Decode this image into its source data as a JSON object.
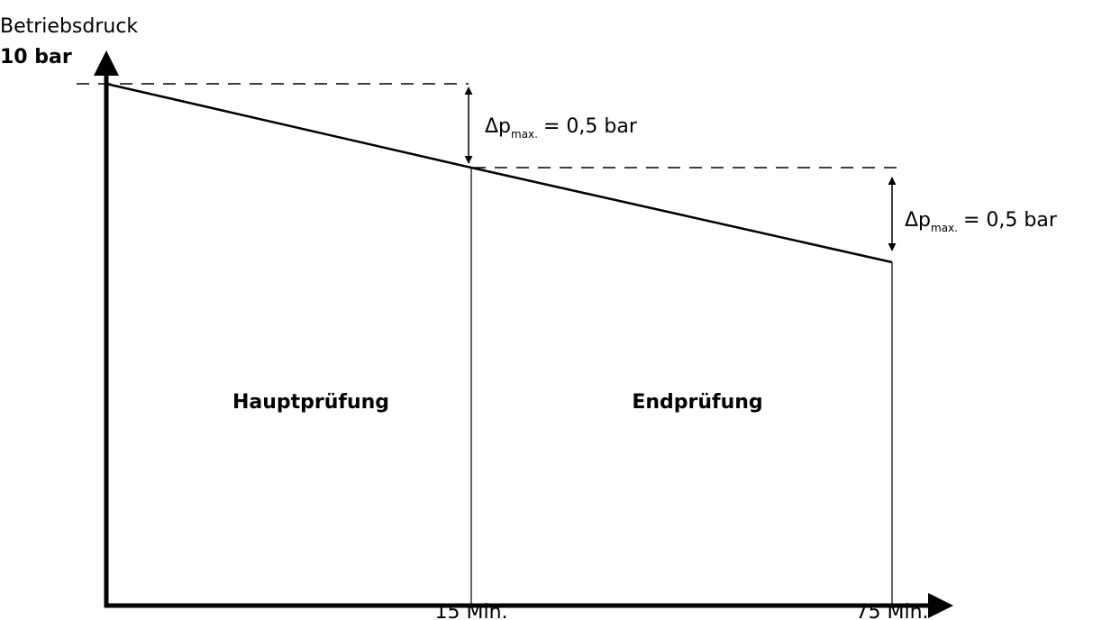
{
  "axis": {
    "y_label": "Betriebsdruck",
    "y_top": "10 bar",
    "x_marks": [
      "15 Min.",
      "75 Min."
    ]
  },
  "annotations": [
    {
      "symbol": "Δp",
      "subscript": "max.",
      "text": "= 0,5 bar"
    },
    {
      "symbol": "Δp",
      "subscript": "max.",
      "text": "= 0,5 bar"
    }
  ],
  "regions": [
    "Hauptprüfung",
    "Endprüfung"
  ]
}
